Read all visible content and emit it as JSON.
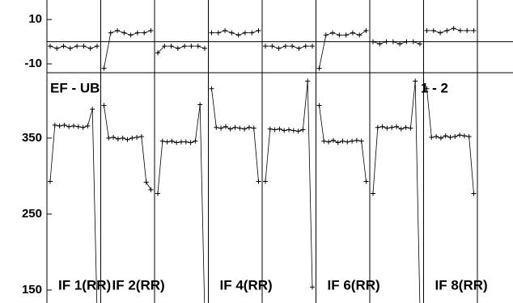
{
  "chart_data": {
    "type": "line",
    "baseline_label": "EF - UB",
    "pair_label": "1 - 2",
    "phase_ylim": [
      -14,
      17
    ],
    "phase_yticks": [
      10,
      -10
    ],
    "amp_ylim": [
      133,
      436
    ],
    "amp_yticks": [
      350,
      250,
      150
    ],
    "color": "#000000",
    "panels": [
      {
        "label": "IF 1(RR)",
        "amp": [
          293,
          367,
          366,
          367,
          365,
          366,
          365,
          364,
          366,
          388,
          120
        ],
        "phase": [
          -2,
          -3,
          -2,
          -3,
          -2,
          -2,
          -3,
          -2
        ]
      },
      {
        "label": "IF 2(RR)",
        "amp": [
          393,
          350,
          351,
          349,
          350,
          348,
          350,
          351,
          352,
          292,
          282
        ],
        "phase": [
          -12,
          4,
          5,
          4,
          3,
          4,
          4,
          5
        ]
      },
      {
        "label": null,
        "amp": [
          277,
          346,
          345,
          346,
          344,
          345,
          345,
          344,
          346,
          394,
          120
        ],
        "phase": [
          -5,
          -2,
          -2,
          -3,
          -2,
          -2,
          -2,
          -3
        ]
      },
      {
        "label": "IF 4(RR)",
        "amp": [
          415,
          364,
          363,
          365,
          362,
          364,
          363,
          362,
          364,
          363,
          293
        ],
        "phase": [
          4,
          4,
          5,
          4,
          3,
          4,
          4,
          5
        ]
      },
      {
        "label": null,
        "amp": [
          293,
          362,
          361,
          362,
          360,
          361,
          360,
          359,
          361,
          425,
          154
        ],
        "phase": [
          -2,
          -2,
          -3,
          -2,
          -2,
          -3,
          -2,
          -2
        ]
      },
      {
        "label": "IF 6(RR)",
        "amp": [
          393,
          346,
          345,
          347,
          344,
          346,
          345,
          346,
          347,
          346,
          293
        ],
        "phase": [
          -12,
          3,
          4,
          3,
          3,
          4,
          3,
          5
        ]
      },
      {
        "label": null,
        "amp": [
          277,
          364,
          365,
          363,
          364,
          365,
          362,
          364,
          363,
          425,
          125
        ],
        "phase": [
          0,
          -1,
          0,
          0,
          -1,
          0,
          0,
          -1
        ]
      },
      {
        "label": "IF 8(RR)",
        "amp": [
          415,
          351,
          352,
          350,
          353,
          351,
          352,
          354,
          353,
          352,
          277
        ],
        "phase": [
          5,
          5,
          4,
          5,
          6,
          5,
          5,
          5
        ]
      }
    ]
  }
}
